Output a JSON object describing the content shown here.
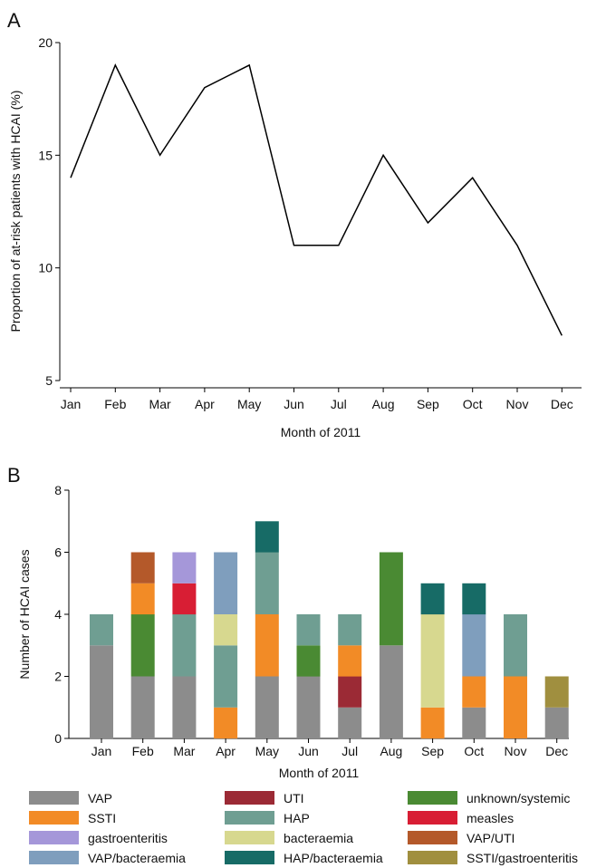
{
  "chart_data": [
    {
      "panel": "A",
      "type": "line",
      "categories": [
        "Jan",
        "Feb",
        "Mar",
        "Apr",
        "May",
        "Jun",
        "Jul",
        "Aug",
        "Sep",
        "Oct",
        "Nov",
        "Dec"
      ],
      "values": [
        14,
        19,
        15,
        18,
        19,
        11,
        11,
        15,
        12,
        14,
        11,
        7
      ],
      "yticks": [
        5,
        10,
        15,
        20
      ],
      "ylim": [
        5,
        20
      ],
      "xlabel": "Month of 2011",
      "ylabel": "Proportion of at-risk patients with HCAI (%)",
      "grid": false,
      "line_color": "#000000"
    },
    {
      "panel": "B",
      "type": "bar",
      "stacked": true,
      "categories": [
        "Jan",
        "Feb",
        "Mar",
        "Apr",
        "May",
        "Jun",
        "Jul",
        "Aug",
        "Sep",
        "Oct",
        "Nov",
        "Dec"
      ],
      "yticks": [
        0,
        2,
        4,
        6,
        8
      ],
      "ylim": [
        0,
        8
      ],
      "xlabel": "Month of 2011",
      "ylabel": "Number of HCAI cases",
      "grid": false,
      "legend_position": "bottom",
      "series": [
        {
          "name": "VAP",
          "color": "#8c8c8c",
          "values": [
            3,
            2,
            2,
            0,
            2,
            2,
            1,
            3,
            0,
            1,
            0,
            1
          ]
        },
        {
          "name": "UTI",
          "color": "#9b2a35",
          "values": [
            0,
            0,
            0,
            0,
            0,
            0,
            1,
            0,
            0,
            0,
            0,
            0
          ]
        },
        {
          "name": "unknown/systemic",
          "color": "#4a8a33",
          "values": [
            0,
            2,
            0,
            0,
            0,
            1,
            0,
            3,
            0,
            0,
            0,
            0
          ]
        },
        {
          "name": "SSTI",
          "color": "#f28b26",
          "values": [
            0,
            1,
            0,
            1,
            2,
            0,
            1,
            0,
            1,
            1,
            2,
            0
          ]
        },
        {
          "name": "HAP",
          "color": "#6f9e92",
          "values": [
            1,
            0,
            2,
            2,
            2,
            1,
            1,
            0,
            0,
            0,
            2,
            0
          ]
        },
        {
          "name": "measles",
          "color": "#d81e34",
          "values": [
            0,
            0,
            1,
            0,
            0,
            0,
            0,
            0,
            0,
            0,
            0,
            0
          ]
        },
        {
          "name": "gastroenteritis",
          "color": "#a597d9",
          "values": [
            0,
            0,
            1,
            0,
            0,
            0,
            0,
            0,
            0,
            0,
            0,
            0
          ]
        },
        {
          "name": "bacteraemia",
          "color": "#d7d88f",
          "values": [
            0,
            0,
            0,
            1,
            0,
            0,
            0,
            0,
            3,
            0,
            0,
            0
          ]
        },
        {
          "name": "VAP/UTI",
          "color": "#b4592a",
          "values": [
            0,
            1,
            0,
            0,
            0,
            0,
            0,
            0,
            0,
            0,
            0,
            0
          ]
        },
        {
          "name": "VAP/bacteraemia",
          "color": "#7f9ebd",
          "values": [
            0,
            0,
            0,
            2,
            0,
            0,
            0,
            0,
            0,
            2,
            0,
            0
          ]
        },
        {
          "name": "HAP/bacteraemia",
          "color": "#176b66",
          "values": [
            0,
            0,
            0,
            0,
            1,
            0,
            0,
            0,
            1,
            1,
            0,
            0
          ]
        },
        {
          "name": "SSTI/gastroenteritis",
          "color": "#a08f3f",
          "values": [
            0,
            0,
            0,
            0,
            0,
            0,
            0,
            0,
            0,
            0,
            0,
            1
          ]
        }
      ],
      "legend_order": [
        "VAP",
        "UTI",
        "unknown/systemic",
        "SSTI",
        "HAP",
        "measles",
        "gastroenteritis",
        "bacteraemia",
        "VAP/UTI",
        "VAP/bacteraemia",
        "HAP/bacteraemia",
        "SSTI/gastroenteritis"
      ]
    }
  ],
  "panel_labels": {
    "a": "A",
    "b": "B"
  }
}
